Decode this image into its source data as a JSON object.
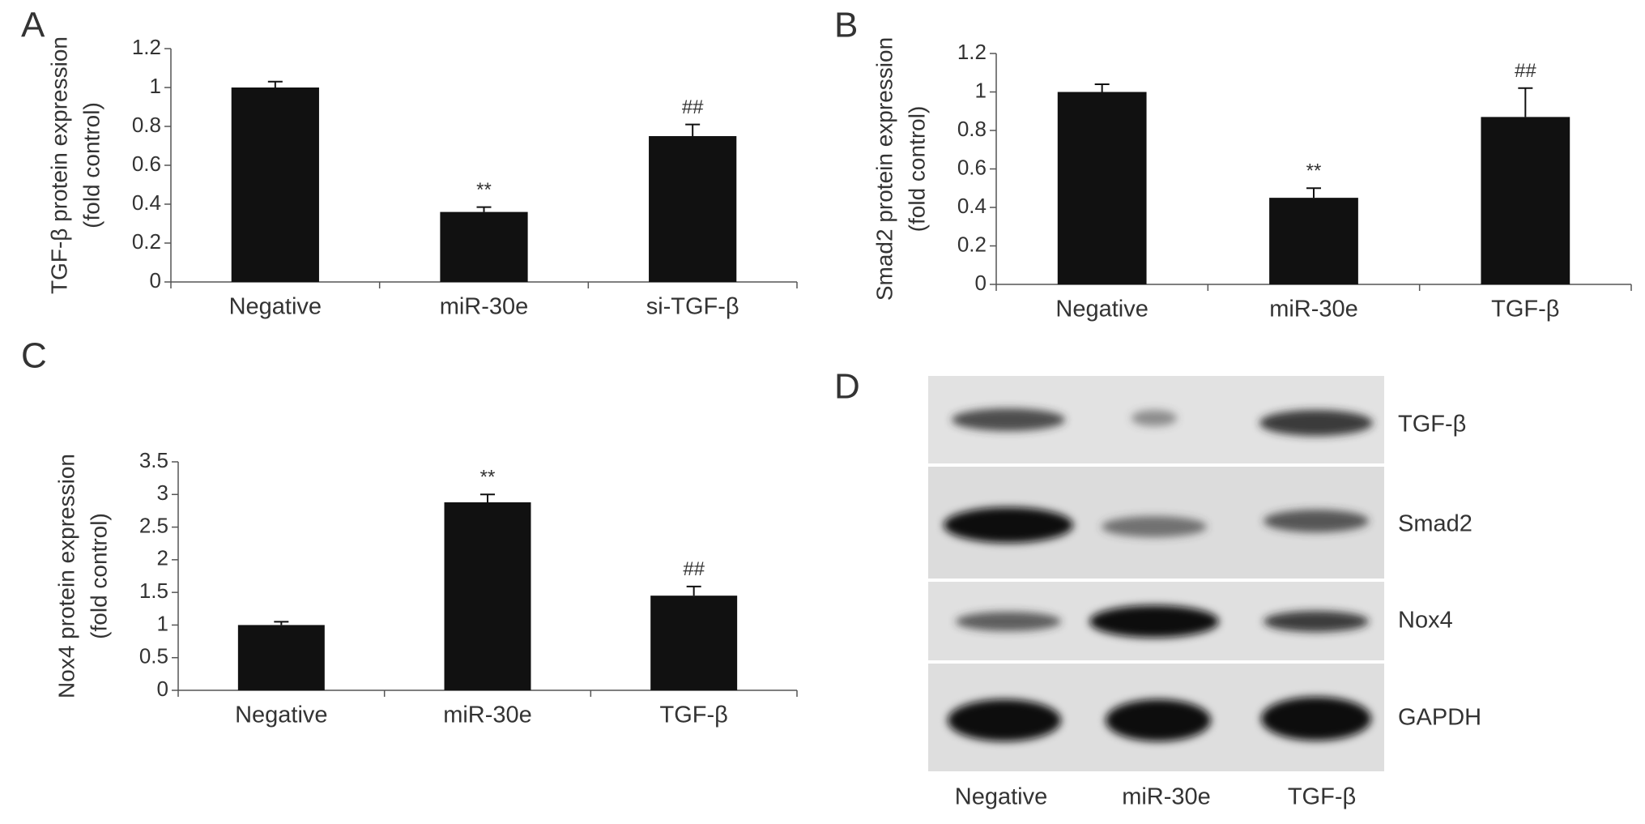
{
  "chart_data": [
    {
      "type": "bar",
      "panel": "A",
      "ylabel": [
        "TGF-β protein expression",
        "(fold control)"
      ],
      "categories": [
        "Negative",
        "miR-30e",
        "si-TGF-β"
      ],
      "values": [
        1.0,
        0.36,
        0.75
      ],
      "errors": [
        0.03,
        0.025,
        0.06
      ],
      "annotations": [
        null,
        "**",
        "##"
      ],
      "color": "#111111",
      "ylim": [
        0,
        1.2
      ],
      "yticks": [
        0,
        0.2,
        0.4,
        0.6,
        0.8,
        1,
        1.2
      ]
    },
    {
      "type": "bar",
      "panel": "B",
      "ylabel": [
        "Smad2 protein expression",
        "(fold control)"
      ],
      "categories": [
        "Negative",
        "miR-30e",
        "TGF-β"
      ],
      "values": [
        1.0,
        0.45,
        0.87
      ],
      "errors": [
        0.04,
        0.05,
        0.15
      ],
      "annotations": [
        null,
        "**",
        "##"
      ],
      "color": "#111111",
      "ylim": [
        0,
        1.2
      ],
      "yticks": [
        0,
        0.2,
        0.4,
        0.6,
        0.8,
        1,
        1.2
      ]
    },
    {
      "type": "bar",
      "panel": "C",
      "ylabel": [
        "Nox4 protein expression",
        "(fold control)"
      ],
      "categories": [
        "Negative",
        "miR-30e",
        "TGF-β"
      ],
      "values": [
        1.0,
        2.88,
        1.45
      ],
      "errors": [
        0.05,
        0.12,
        0.14
      ],
      "annotations": [
        null,
        "**",
        "##"
      ],
      "color": "#111111",
      "ylim": [
        0,
        3.5
      ],
      "yticks": [
        0,
        0.5,
        1,
        1.5,
        2,
        2.5,
        3,
        3.5
      ]
    }
  ],
  "blot": {
    "panel": "D",
    "rows": [
      "TGF-β",
      "Smad2",
      "Nox4",
      "GAPDH"
    ],
    "columns": [
      "Negative",
      "miR-30e",
      "TGF-β"
    ]
  }
}
